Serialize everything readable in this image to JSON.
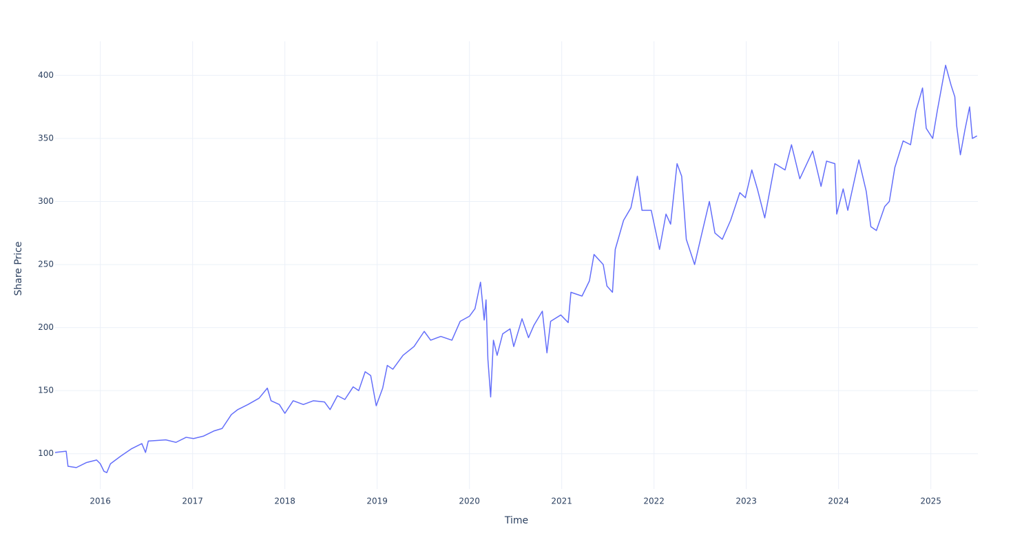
{
  "chart_data": {
    "type": "line",
    "x_label": "Time",
    "y_label": "Share Price",
    "x": [
      2015.51,
      2015.63,
      2015.65,
      2015.74,
      2015.85,
      2015.96,
      2016.0,
      2016.04,
      2016.07,
      2016.11,
      2016.22,
      2016.34,
      2016.45,
      2016.49,
      2016.52,
      2016.71,
      2016.82,
      2016.93,
      2017.01,
      2017.12,
      2017.23,
      2017.32,
      2017.42,
      2017.49,
      2017.6,
      2017.72,
      2017.81,
      2017.85,
      2017.94,
      2018.0,
      2018.09,
      2018.2,
      2018.31,
      2018.43,
      2018.49,
      2018.57,
      2018.65,
      2018.74,
      2018.8,
      2018.87,
      2018.93,
      2018.99,
      2019.06,
      2019.11,
      2019.17,
      2019.28,
      2019.4,
      2019.51,
      2019.58,
      2019.69,
      2019.81,
      2019.9,
      2020.0,
      2020.06,
      2020.12,
      2020.16,
      2020.18,
      2020.2,
      2020.23,
      2020.26,
      2020.3,
      2020.36,
      2020.44,
      2020.48,
      2020.57,
      2020.64,
      2020.7,
      2020.79,
      2020.84,
      2020.88,
      2020.99,
      2021.07,
      2021.1,
      2021.22,
      2021.3,
      2021.35,
      2021.45,
      2021.49,
      2021.55,
      2021.58,
      2021.67,
      2021.75,
      2021.82,
      2021.87,
      2021.97,
      2022.06,
      2022.13,
      2022.18,
      2022.25,
      2022.3,
      2022.35,
      2022.44,
      2022.51,
      2022.6,
      2022.66,
      2022.74,
      2022.83,
      2022.93,
      2022.99,
      2023.06,
      2023.12,
      2023.2,
      2023.31,
      2023.42,
      2023.49,
      2023.58,
      2023.72,
      2023.81,
      2023.87,
      2023.96,
      2023.98,
      2024.05,
      2024.1,
      2024.22,
      2024.3,
      2024.35,
      2024.41,
      2024.5,
      2024.55,
      2024.61,
      2024.7,
      2024.78,
      2024.84,
      2024.91,
      2024.95,
      2025.02,
      2025.07,
      2025.16,
      2025.22,
      2025.26,
      2025.28,
      2025.32,
      2025.37,
      2025.42,
      2025.45,
      2025.5
    ],
    "values": [
      101,
      102,
      90,
      89,
      93,
      95,
      92,
      86,
      85,
      92,
      98,
      104,
      108,
      101,
      110,
      111,
      109,
      113,
      112,
      114,
      118,
      120,
      131,
      135,
      139,
      144,
      152,
      142,
      139,
      132,
      142,
      139,
      142,
      141,
      135,
      146,
      143,
      153,
      150,
      165,
      162,
      138,
      152,
      170,
      167,
      178,
      185,
      197,
      190,
      193,
      190,
      205,
      209,
      215,
      236,
      206,
      222,
      175,
      145,
      190,
      178,
      195,
      199,
      185,
      207,
      192,
      202,
      213,
      180,
      205,
      210,
      204,
      228,
      225,
      237,
      258,
      250,
      233,
      228,
      262,
      285,
      295,
      320,
      293,
      293,
      262,
      290,
      282,
      330,
      320,
      270,
      250,
      272,
      300,
      275,
      270,
      285,
      307,
      303,
      325,
      310,
      287,
      330,
      325,
      345,
      318,
      340,
      312,
      332,
      330,
      290,
      310,
      293,
      333,
      308,
      280,
      277,
      296,
      300,
      327,
      348,
      345,
      372,
      390,
      358,
      350,
      372,
      408,
      392,
      383,
      360,
      337,
      357,
      375,
      350,
      352
    ],
    "color": "#636efa",
    "xlim": [
      2015.51,
      2025.51
    ],
    "xticks": [
      2016,
      2017,
      2018,
      2019,
      2020,
      2021,
      2022,
      2023,
      2024,
      2025
    ],
    "ylim": [
      72,
      427
    ],
    "yticks": [
      100,
      150,
      200,
      250,
      300,
      350,
      400
    ],
    "grid": true
  }
}
